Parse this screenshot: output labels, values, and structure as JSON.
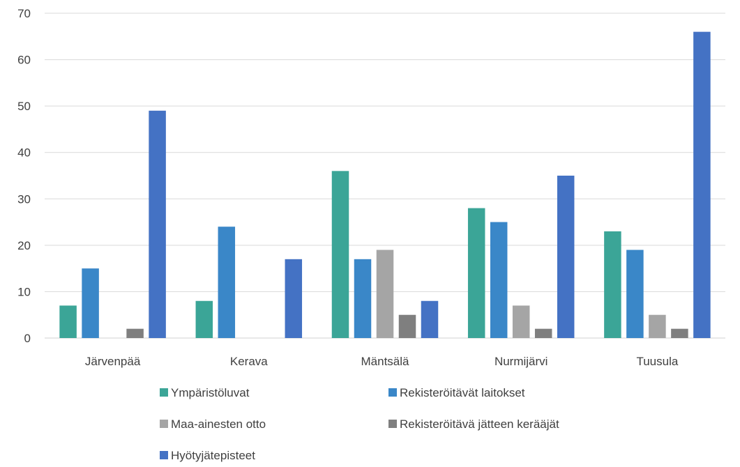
{
  "chart_data": {
    "type": "bar",
    "title": "",
    "xlabel": "",
    "ylabel": "",
    "ylim": [
      0,
      70
    ],
    "yticks": [
      0,
      10,
      20,
      30,
      40,
      50,
      60,
      70
    ],
    "grid": true,
    "legend_position": "bottom",
    "categories": [
      "Järvenpää",
      "Kerava",
      "Mäntsälä",
      "Nurmijärvi",
      "Tuusula"
    ],
    "series": [
      {
        "name": "Ympäristöluvat",
        "color": "#3BA597",
        "values": [
          7,
          8,
          36,
          28,
          23
        ]
      },
      {
        "name": "Rekisteröitävät laitokset",
        "color": "#3A87C8",
        "values": [
          15,
          24,
          17,
          25,
          19
        ]
      },
      {
        "name": "Maa-ainesten otto",
        "color": "#A5A5A5",
        "values": [
          0,
          0,
          19,
          7,
          5
        ]
      },
      {
        "name": "Rekisteröitävä jätteen kerääjät",
        "color": "#7F7F7F",
        "values": [
          2,
          0,
          5,
          2,
          2
        ]
      },
      {
        "name": "Hyötyjätepisteet",
        "color": "#4472C4",
        "values": [
          49,
          17,
          8,
          35,
          66
        ]
      }
    ]
  }
}
